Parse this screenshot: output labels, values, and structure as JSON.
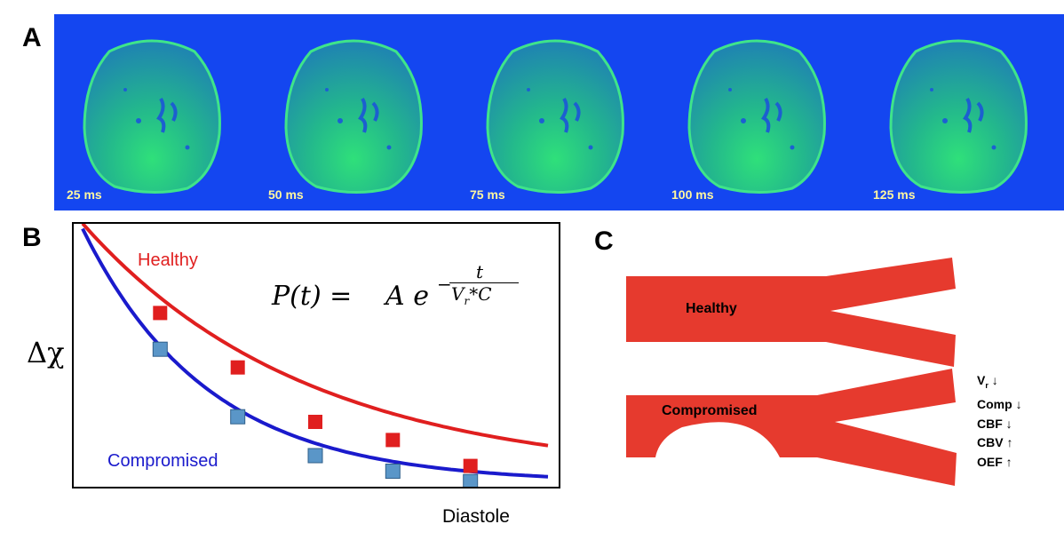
{
  "panels": {
    "a": "A",
    "b": "B",
    "c": "C"
  },
  "panel_a": {
    "background_color": "#1446f0",
    "frames": [
      {
        "label": "25 ms"
      },
      {
        "label": "50 ms"
      },
      {
        "label": "75 ms"
      },
      {
        "label": "100 ms"
      },
      {
        "label": "125 ms"
      }
    ]
  },
  "chart_data": {
    "type": "line",
    "title": "",
    "xlabel": "Diastole",
    "ylabel": "Δχ",
    "formula": {
      "lhs": "P(t) =",
      "amplitude": "A e",
      "exponent_sign": "−",
      "numerator": "t",
      "denominator_base": "V",
      "denominator_sub": "r",
      "denominator_rest": "*C"
    },
    "x": [
      1,
      2,
      3,
      4,
      5
    ],
    "x_curve_start": 0,
    "xlim": [
      0,
      6
    ],
    "ylim": [
      0,
      1
    ],
    "series": [
      {
        "name": "Healthy",
        "color": "#e01f1f",
        "decay": 0.345,
        "values": [
          0.67,
          0.46,
          0.25,
          0.18,
          0.08
        ]
      },
      {
        "name": "Compromised",
        "color": "#1a1acc",
        "marker_color": "#5a96c8",
        "decay": 0.62,
        "values": [
          0.53,
          0.27,
          0.12,
          0.06,
          0.02
        ]
      }
    ]
  },
  "panel_c": {
    "vessel_color": "#e63a2e",
    "healthy_label": "Healthy",
    "compromised_label": "Compromised",
    "effects": [
      {
        "name": "V",
        "sub": "r",
        "arrow": "↓"
      },
      {
        "name": "Comp",
        "sub": "",
        "arrow": "↓"
      },
      {
        "name": "CBF",
        "sub": "",
        "arrow": "↓"
      },
      {
        "name": "CBV",
        "sub": "",
        "arrow": "↑"
      },
      {
        "name": "OEF",
        "sub": "",
        "arrow": "↑"
      }
    ]
  }
}
